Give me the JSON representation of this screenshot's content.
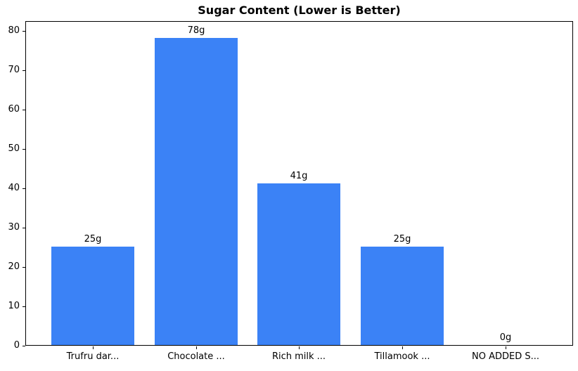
{
  "chart_data": {
    "type": "bar",
    "title": "Sugar Content (Lower is Better)",
    "categories": [
      "Trufru dar...",
      "Chocolate ...",
      "Rich milk ...",
      "Tillamook ...",
      "NO ADDED S..."
    ],
    "values": [
      25,
      78,
      41,
      25,
      0
    ],
    "bar_labels": [
      "25g",
      "78g",
      "41g",
      "25g",
      "0g"
    ],
    "xlabel": "",
    "ylabel": "",
    "ylim": [
      0,
      82.5
    ],
    "yticks": [
      0,
      10,
      20,
      30,
      40,
      50,
      60,
      70,
      80
    ],
    "grid": false,
    "legend_position": "none",
    "bar_color": "#3b82f6",
    "text_color": "#000000",
    "spine_color": "#000000",
    "background_color": "#ffffff"
  }
}
